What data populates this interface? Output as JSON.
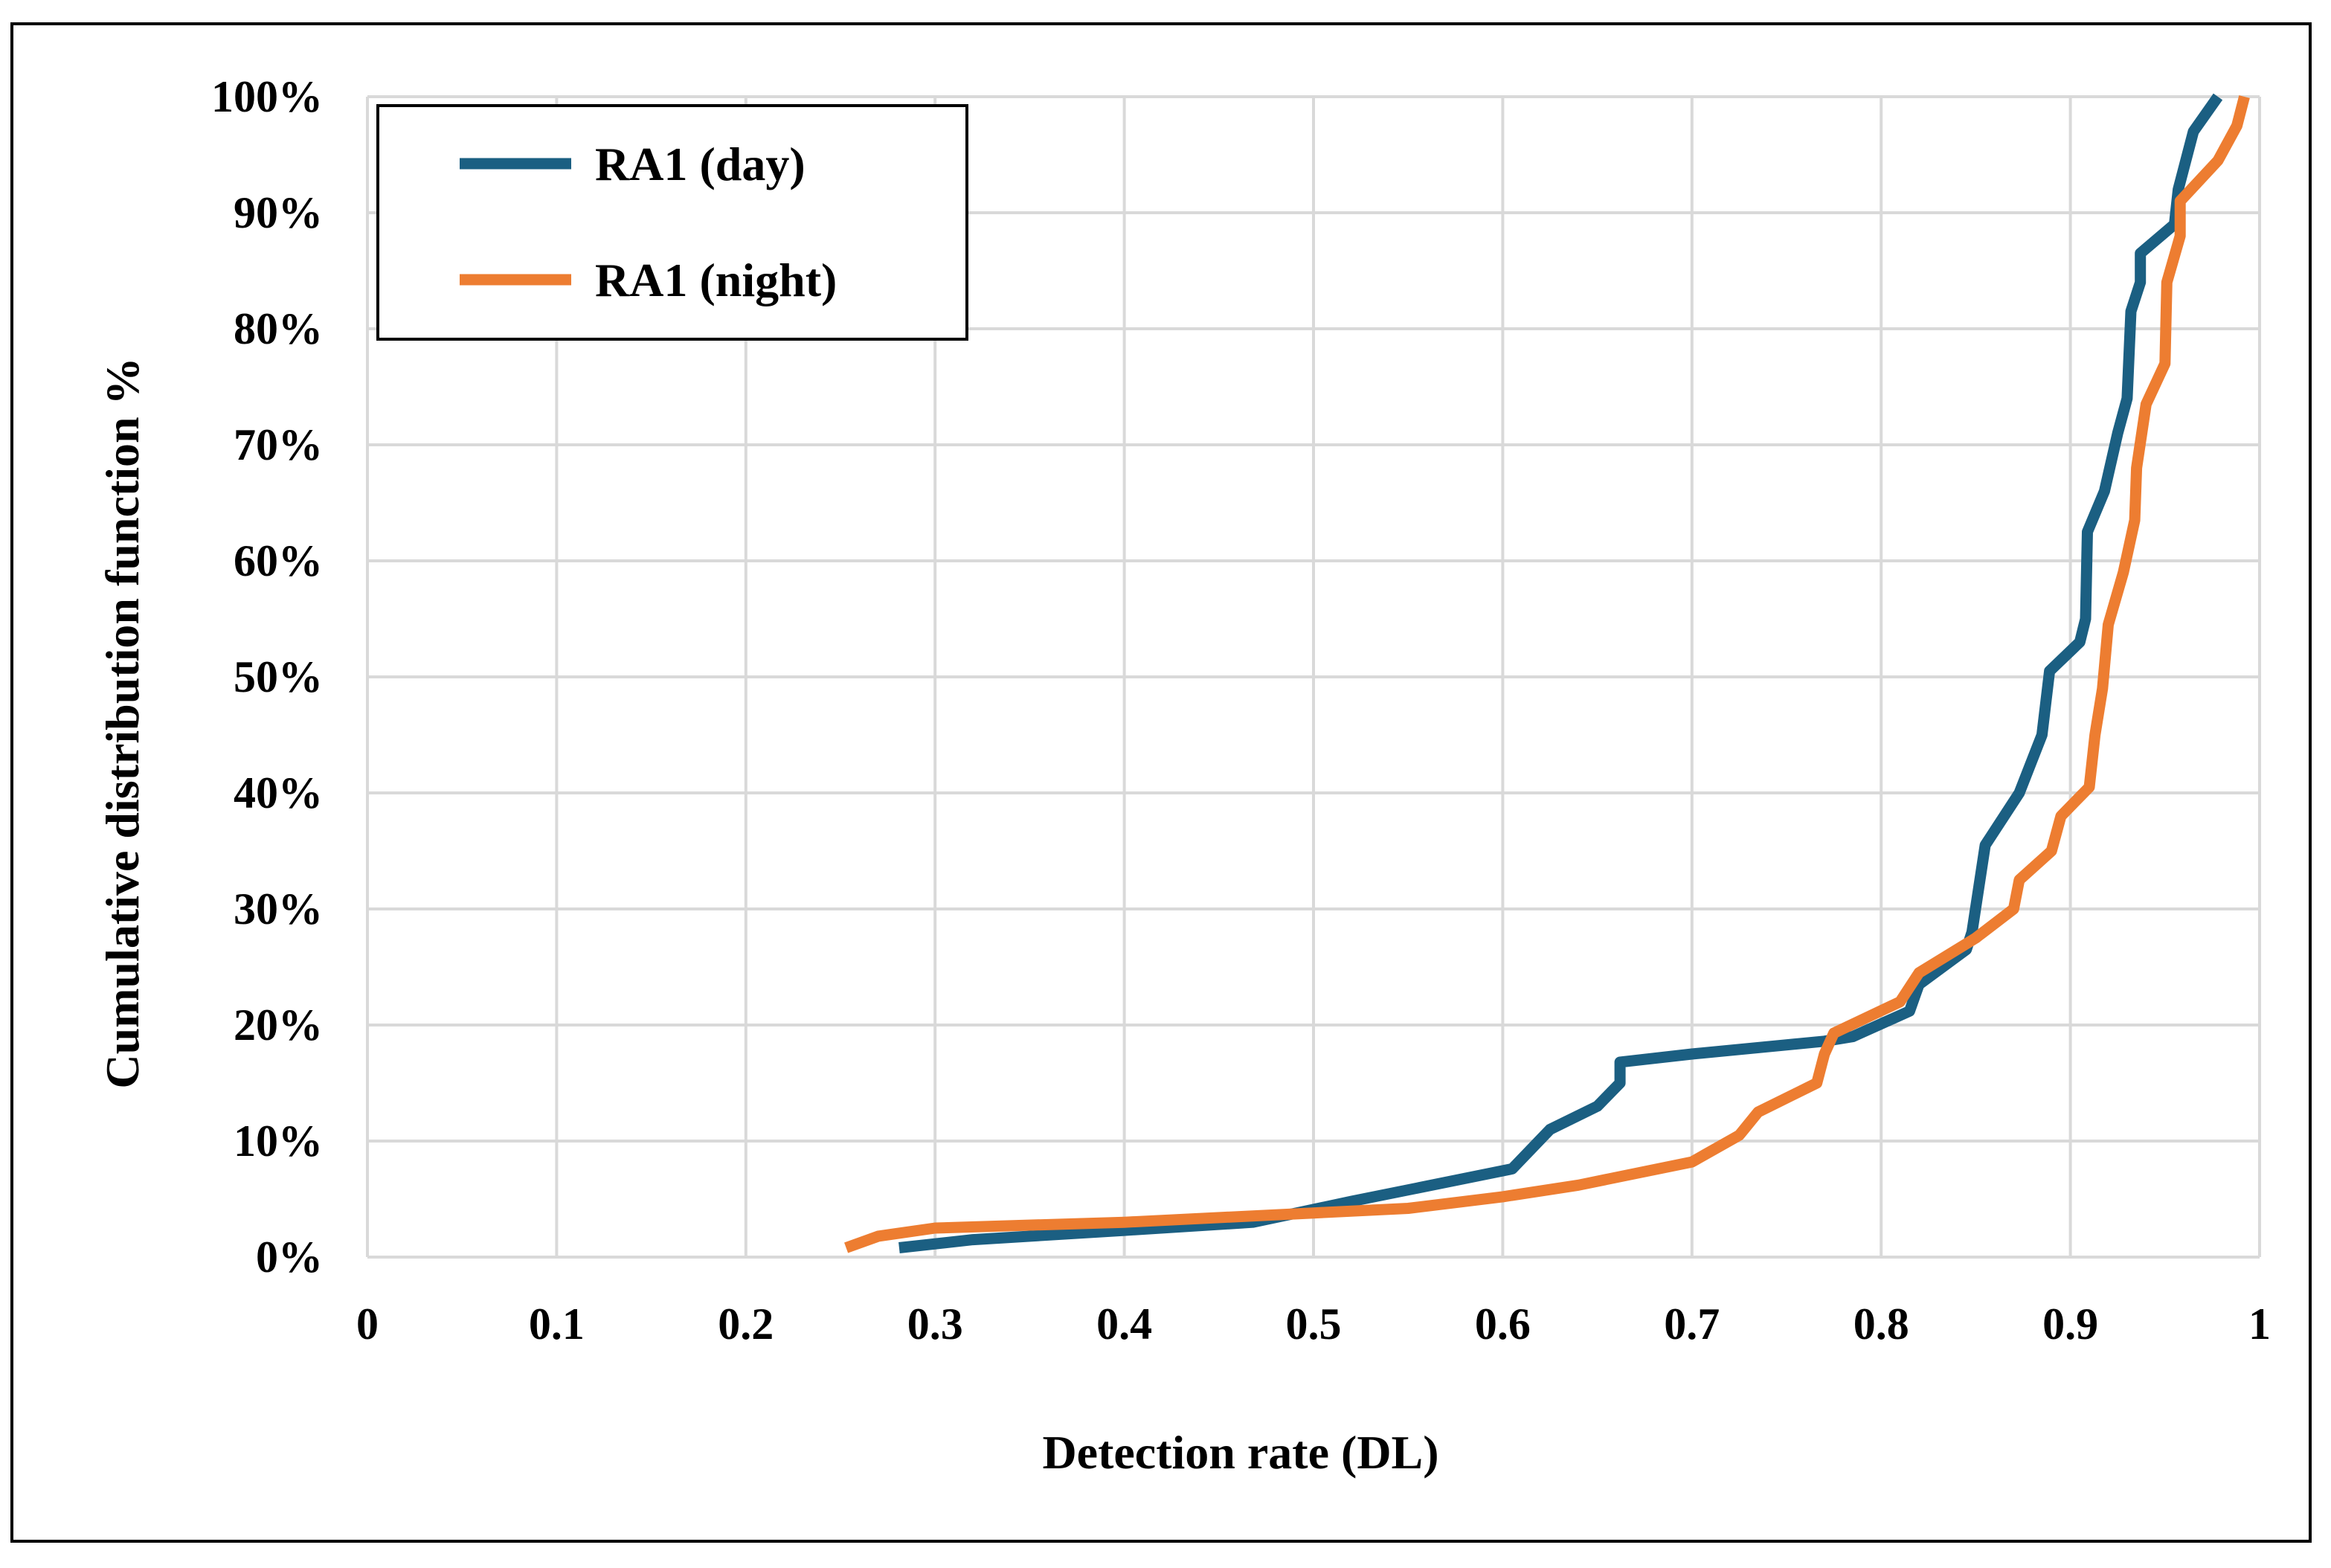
{
  "chart_data": {
    "type": "line",
    "title": "",
    "xlabel": "Detection rate (DL)",
    "ylabel": "Cumulative distribution  function %",
    "xlim": [
      0,
      1
    ],
    "ylim": [
      0,
      100
    ],
    "grid": true,
    "legend_position": "top-left",
    "x_ticks": [
      "0",
      "0.1",
      "0.2",
      "0.3",
      "0.4",
      "0.5",
      "0.6",
      "0.7",
      "0.8",
      "0.9",
      "1"
    ],
    "y_ticks": [
      "0%",
      "10%",
      "20%",
      "30%",
      "40%",
      "50%",
      "60%",
      "70%",
      "80%",
      "90%",
      "100%"
    ],
    "series": [
      {
        "name": "RA1 (day)",
        "color": "#1b5f82",
        "points": [
          [
            0.281,
            0.8
          ],
          [
            0.32,
            1.5
          ],
          [
            0.4,
            2.3
          ],
          [
            0.468,
            3.0
          ],
          [
            0.52,
            4.8
          ],
          [
            0.605,
            7.6
          ],
          [
            0.625,
            11.0
          ],
          [
            0.65,
            13.0
          ],
          [
            0.662,
            15.0
          ],
          [
            0.662,
            16.8
          ],
          [
            0.7,
            17.5
          ],
          [
            0.77,
            18.6
          ],
          [
            0.785,
            19.0
          ],
          [
            0.815,
            21.2
          ],
          [
            0.82,
            23.5
          ],
          [
            0.845,
            26.5
          ],
          [
            0.848,
            28.0
          ],
          [
            0.855,
            35.5
          ],
          [
            0.873,
            40.0
          ],
          [
            0.885,
            45.0
          ],
          [
            0.889,
            50.5
          ],
          [
            0.905,
            53.0
          ],
          [
            0.908,
            55.0
          ],
          [
            0.909,
            62.5
          ],
          [
            0.918,
            66.0
          ],
          [
            0.925,
            71.0
          ],
          [
            0.93,
            74.0
          ],
          [
            0.932,
            81.5
          ],
          [
            0.937,
            84.0
          ],
          [
            0.937,
            86.5
          ],
          [
            0.955,
            89.0
          ],
          [
            0.957,
            92.0
          ],
          [
            0.965,
            97.0
          ],
          [
            0.978,
            100.0
          ]
        ]
      },
      {
        "name": "RA1 (night)",
        "color": "#ed7d31",
        "points": [
          [
            0.253,
            0.8
          ],
          [
            0.27,
            1.8
          ],
          [
            0.3,
            2.5
          ],
          [
            0.4,
            3.0
          ],
          [
            0.5,
            3.8
          ],
          [
            0.55,
            4.2
          ],
          [
            0.6,
            5.2
          ],
          [
            0.64,
            6.2
          ],
          [
            0.7,
            8.2
          ],
          [
            0.725,
            10.5
          ],
          [
            0.735,
            12.5
          ],
          [
            0.766,
            15.0
          ],
          [
            0.77,
            17.5
          ],
          [
            0.775,
            19.3
          ],
          [
            0.81,
            22.0
          ],
          [
            0.82,
            24.5
          ],
          [
            0.85,
            27.5
          ],
          [
            0.87,
            30.0
          ],
          [
            0.873,
            32.5
          ],
          [
            0.89,
            35.0
          ],
          [
            0.895,
            38.0
          ],
          [
            0.91,
            40.5
          ],
          [
            0.913,
            45.0
          ],
          [
            0.917,
            49.0
          ],
          [
            0.92,
            54.5
          ],
          [
            0.928,
            59.0
          ],
          [
            0.934,
            63.5
          ],
          [
            0.935,
            68.0
          ],
          [
            0.94,
            73.5
          ],
          [
            0.95,
            77.0
          ],
          [
            0.951,
            84.0
          ],
          [
            0.958,
            88.0
          ],
          [
            0.958,
            91.0
          ],
          [
            0.978,
            94.5
          ],
          [
            0.988,
            97.5
          ],
          [
            0.992,
            100.0
          ]
        ]
      }
    ]
  }
}
